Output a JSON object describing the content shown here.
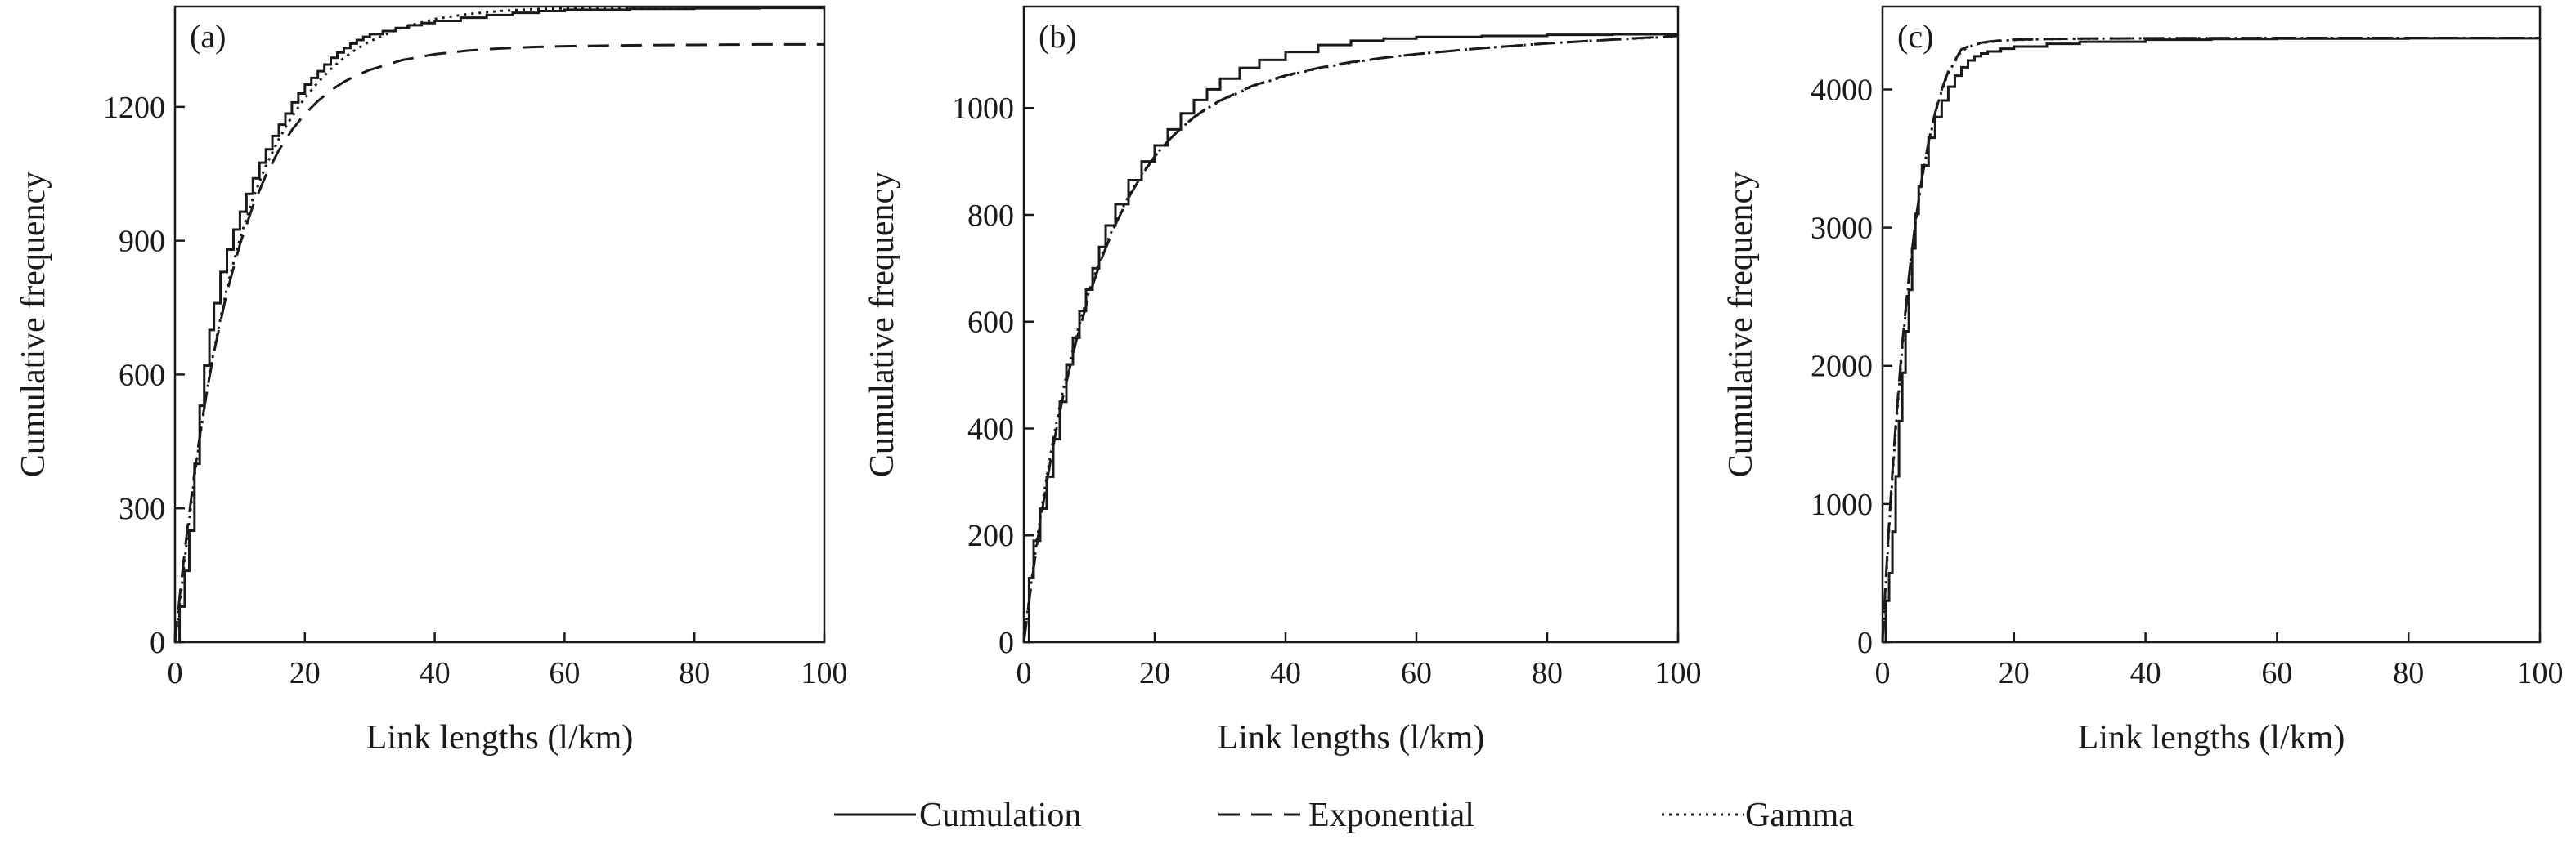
{
  "legend": {
    "placement": "bottom-center",
    "items": [
      {
        "label": "Cumulation",
        "style": "solid"
      },
      {
        "label": "Exponential",
        "style": "dashed"
      },
      {
        "label": "Gamma",
        "style": "dotted"
      }
    ]
  },
  "colors": {
    "line": "#1a1a1a",
    "background": "#ffffff"
  },
  "chart_data": [
    {
      "type": "line",
      "panel": "(a)",
      "xlabel": "Link lengths (l/km)",
      "ylabel": "Cumulative frequency",
      "xlim": [
        0,
        100
      ],
      "ylim": [
        0,
        1425
      ],
      "xticks": [
        0,
        20,
        40,
        60,
        80,
        100
      ],
      "yticks": [
        0,
        300,
        600,
        900,
        1200
      ],
      "grid": false,
      "series": [
        {
          "name": "Cumulation",
          "style": "step",
          "x": [
            0,
            0.7,
            1.5,
            2.2,
            3,
            3.8,
            4.5,
            5.3,
            6,
            7,
            8,
            9,
            10,
            11,
            12,
            13,
            14,
            15,
            16,
            17,
            18,
            19,
            20,
            21,
            22,
            23,
            24,
            25,
            26,
            27,
            28,
            29,
            30,
            32,
            34,
            36,
            38,
            40,
            44,
            48,
            52,
            56,
            60,
            70,
            80,
            90,
            100
          ],
          "y": [
            0,
            80,
            160,
            250,
            400,
            530,
            620,
            700,
            760,
            830,
            880,
            925,
            965,
            1005,
            1040,
            1075,
            1105,
            1135,
            1160,
            1185,
            1210,
            1230,
            1250,
            1265,
            1280,
            1295,
            1310,
            1322,
            1332,
            1342,
            1350,
            1357,
            1363,
            1370,
            1377,
            1383,
            1388,
            1393,
            1400,
            1406,
            1411,
            1415,
            1418,
            1420,
            1421,
            1422,
            1422
          ]
        },
        {
          "name": "Exponential",
          "style": "dashed",
          "x": [
            0,
            1,
            2,
            3,
            4,
            5,
            6,
            8,
            10,
            12,
            14,
            16,
            18,
            20,
            22,
            24,
            26,
            28,
            30,
            35,
            40,
            45,
            50,
            55,
            60,
            70,
            80,
            90,
            100
          ],
          "y": [
            0,
            140,
            265,
            380,
            480,
            570,
            650,
            785,
            892,
            978,
            1047,
            1103,
            1148,
            1184,
            1213,
            1237,
            1256,
            1271,
            1283,
            1305,
            1318,
            1326,
            1331,
            1334,
            1336,
            1338,
            1339,
            1340,
            1340
          ]
        },
        {
          "name": "Gamma",
          "style": "dotted",
          "x": [
            0,
            1,
            2,
            3,
            4,
            5,
            6,
            8,
            10,
            12,
            14,
            16,
            18,
            20,
            22,
            24,
            26,
            28,
            30,
            35,
            40,
            45,
            50,
            55,
            60,
            70,
            80,
            90,
            100
          ],
          "y": [
            0,
            120,
            250,
            370,
            475,
            570,
            655,
            795,
            905,
            995,
            1068,
            1128,
            1178,
            1220,
            1255,
            1285,
            1310,
            1330,
            1347,
            1378,
            1397,
            1408,
            1415,
            1419,
            1421,
            1423,
            1424,
            1424,
            1424
          ]
        }
      ]
    },
    {
      "type": "line",
      "panel": "(b)",
      "xlabel": "Link lengths (l/km)",
      "ylabel": "Cumulative frequency",
      "xlim": [
        0,
        100
      ],
      "ylim": [
        0,
        1190
      ],
      "xticks": [
        0,
        20,
        40,
        60,
        80,
        100
      ],
      "yticks": [
        0,
        200,
        400,
        600,
        800,
        1000
      ],
      "grid": false,
      "series": [
        {
          "name": "Cumulation",
          "style": "step",
          "x": [
            0,
            0.8,
            1.5,
            2.5,
            3.5,
            4.5,
            5.5,
            6.5,
            7.5,
            8.5,
            9.5,
            10.5,
            11.5,
            12.5,
            14,
            16,
            18,
            20,
            22,
            24,
            26,
            28,
            30,
            33,
            36,
            40,
            45,
            50,
            55,
            60,
            70,
            80,
            90,
            100
          ],
          "y": [
            0,
            120,
            190,
            250,
            310,
            380,
            450,
            520,
            570,
            620,
            660,
            700,
            740,
            780,
            820,
            865,
            900,
            930,
            960,
            990,
            1015,
            1035,
            1055,
            1075,
            1090,
            1105,
            1118,
            1126,
            1130,
            1133,
            1135,
            1137,
            1138,
            1138
          ]
        },
        {
          "name": "Exponential",
          "style": "dashed",
          "x": [
            0,
            1,
            2,
            3,
            4,
            5,
            6,
            8,
            10,
            12,
            14,
            16,
            18,
            20,
            22,
            24,
            26,
            28,
            30,
            35,
            40,
            45,
            50,
            55,
            60,
            70,
            80,
            90,
            100
          ],
          "y": [
            0,
            95,
            182,
            262,
            334,
            400,
            460,
            564,
            650,
            722,
            782,
            832,
            874,
            909,
            938,
            962,
            983,
            1000,
            1014,
            1042,
            1061,
            1075,
            1086,
            1094,
            1101,
            1112,
            1121,
            1128,
            1135
          ]
        },
        {
          "name": "Gamma",
          "style": "dotted",
          "x": [
            0,
            1,
            2,
            3,
            4,
            5,
            6,
            8,
            10,
            12,
            14,
            16,
            18,
            20,
            22,
            24,
            26,
            28,
            30,
            35,
            40,
            45,
            50,
            55,
            60,
            70,
            80,
            90,
            100
          ],
          "y": [
            0,
            100,
            190,
            272,
            346,
            412,
            472,
            574,
            658,
            728,
            786,
            835,
            876,
            910,
            938,
            962,
            982,
            999,
            1013,
            1041,
            1060,
            1074,
            1085,
            1094,
            1101,
            1112,
            1121,
            1128,
            1134
          ]
        }
      ]
    },
    {
      "type": "line",
      "panel": "(c)",
      "xlabel": "Link lengths (l/km)",
      "ylabel": "Cumulative frequency",
      "xlim": [
        0,
        100
      ],
      "ylim": [
        0,
        4600
      ],
      "xticks": [
        0,
        20,
        40,
        60,
        80,
        100
      ],
      "yticks": [
        0,
        1000,
        2000,
        3000,
        4000
      ],
      "grid": false,
      "series": [
        {
          "name": "Cumulation",
          "style": "step",
          "x": [
            0,
            0.5,
            1,
            1.5,
            2,
            2.5,
            3,
            3.5,
            4,
            4.5,
            5,
            5.5,
            6,
            7,
            8,
            9,
            10,
            11,
            12,
            13,
            14,
            15,
            16,
            18,
            20,
            25,
            30,
            40,
            50,
            60,
            80,
            100
          ],
          "y": [
            0,
            300,
            500,
            800,
            1200,
            1600,
            1950,
            2250,
            2550,
            2850,
            3100,
            3300,
            3450,
            3650,
            3800,
            3920,
            4020,
            4100,
            4160,
            4210,
            4240,
            4260,
            4275,
            4295,
            4310,
            4330,
            4345,
            4360,
            4365,
            4368,
            4370,
            4372
          ]
        },
        {
          "name": "Exponential",
          "style": "dashed",
          "x": [
            0,
            0.5,
            1,
            1.5,
            2,
            3,
            4,
            5,
            6,
            7,
            8,
            9,
            10,
            12,
            14,
            16,
            18,
            20,
            25,
            30,
            40,
            50,
            60,
            80,
            100
          ],
          "y": [
            0,
            450,
            860,
            1230,
            1570,
            2160,
            2640,
            3040,
            3360,
            3620,
            3830,
            4000,
            4130,
            4290,
            4330,
            4345,
            4355,
            4360,
            4365,
            4368,
            4370,
            4371,
            4372,
            4372,
            4372
          ]
        },
        {
          "name": "Gamma",
          "style": "dotted",
          "x": [
            0,
            0.5,
            1,
            1.5,
            2,
            3,
            4,
            5,
            6,
            7,
            8,
            9,
            10,
            12,
            14,
            16,
            18,
            20,
            25,
            30,
            40,
            50,
            60,
            80,
            100
          ],
          "y": [
            0,
            420,
            820,
            1190,
            1530,
            2130,
            2620,
            3030,
            3350,
            3610,
            3820,
            3990,
            4120,
            4280,
            4325,
            4342,
            4352,
            4358,
            4364,
            4367,
            4370,
            4371,
            4372,
            4372,
            4372
          ]
        }
      ]
    }
  ]
}
